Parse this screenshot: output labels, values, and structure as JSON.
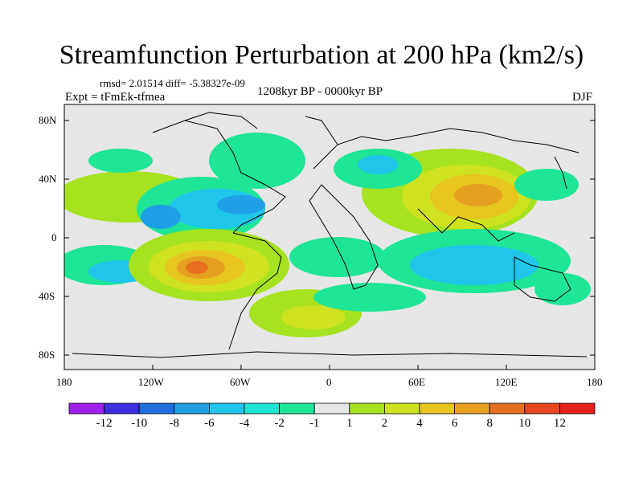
{
  "title": "Streamfunction Perturbation at 200 hPa (km2/s)",
  "stats": "rmsd= 2.01514  diff= -5.38327e-09",
  "left_label": "Expt = tFmEk-tfmea",
  "center_label": "1208kyr BP - 0000kyr BP",
  "right_label": "DJF",
  "lat_labels": [
    "80N",
    "40N",
    "0",
    "40S",
    "80S"
  ],
  "lon_labels": [
    "180",
    "120W",
    "60W",
    "0",
    "60E",
    "120E",
    "180"
  ],
  "colorbar": {
    "labels": [
      "-12",
      "-10",
      "-8",
      "-6",
      "-4",
      "-2",
      "-1",
      "1",
      "2",
      "4",
      "6",
      "8",
      "10",
      "12"
    ],
    "colors": [
      "#9f1fef",
      "#3b2fe0",
      "#1f6fe0",
      "#1fa0e6",
      "#1fc6ea",
      "#1fe3d0",
      "#1fe596",
      "#e6e6e6",
      "#a6e21f",
      "#cfe21f",
      "#e6c51f",
      "#e6a01f",
      "#e6701f",
      "#e6461f",
      "#e61f1f"
    ]
  }
}
